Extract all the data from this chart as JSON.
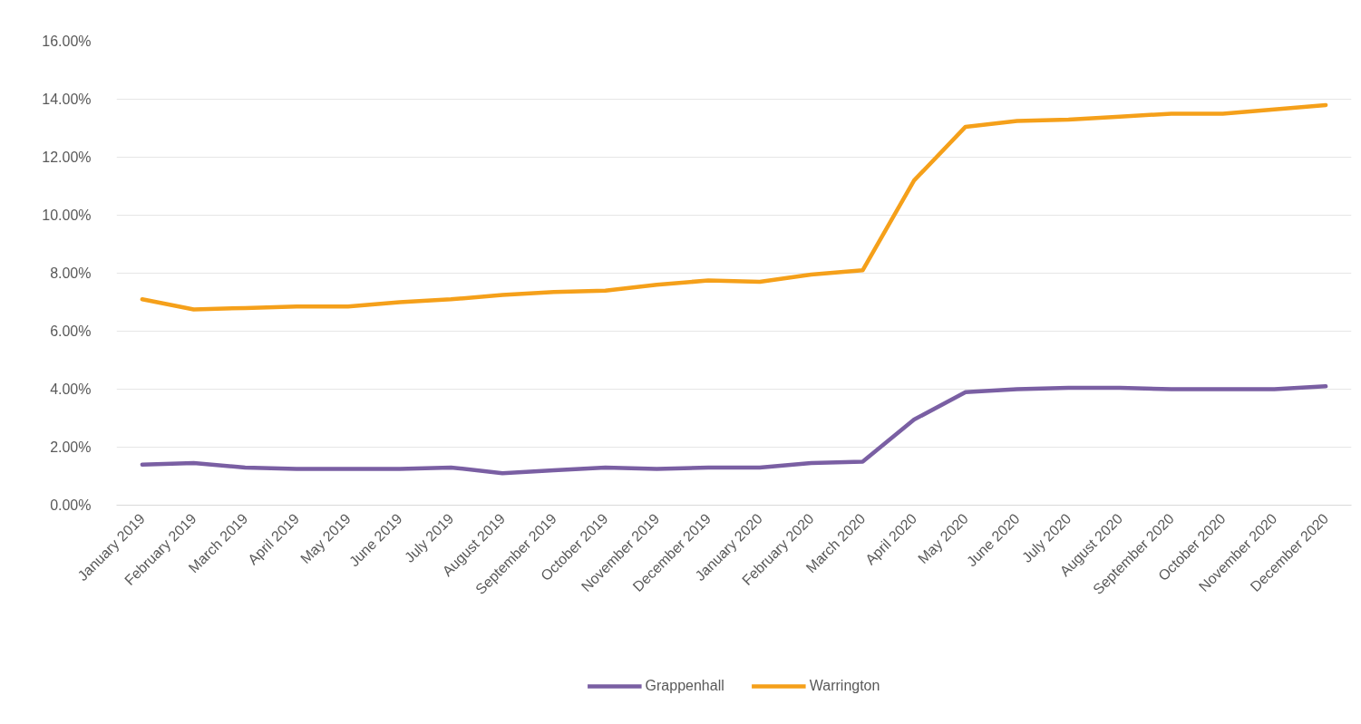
{
  "chart_data": {
    "type": "line",
    "categories": [
      "January 2019",
      "February 2019",
      "March 2019",
      "April 2019",
      "May 2019",
      "June 2019",
      "July 2019",
      "August 2019",
      "September 2019",
      "October 2019",
      "November 2019",
      "December 2019",
      "January 2020",
      "February 2020",
      "March 2020",
      "April 2020",
      "May 2020",
      "June 2020",
      "July 2020",
      "August 2020",
      "September 2020",
      "October 2020",
      "November 2020",
      "December 2020"
    ],
    "series": [
      {
        "name": "Grappenhall",
        "color": "#7a5fa3",
        "values": [
          1.4,
          1.45,
          1.3,
          1.25,
          1.25,
          1.25,
          1.3,
          1.1,
          1.2,
          1.3,
          1.25,
          1.3,
          1.3,
          1.45,
          1.5,
          2.95,
          3.9,
          4.0,
          4.05,
          4.05,
          4.0,
          4.0,
          4.0,
          4.1
        ]
      },
      {
        "name": "Warrington",
        "color": "#f5a01a",
        "values": [
          7.1,
          6.75,
          6.8,
          6.85,
          6.85,
          7.0,
          7.1,
          7.25,
          7.35,
          7.4,
          7.6,
          7.75,
          7.7,
          7.95,
          8.1,
          11.2,
          13.05,
          13.25,
          13.3,
          13.4,
          13.5,
          13.5,
          13.65,
          13.8
        ]
      }
    ],
    "ylim": [
      0,
      16
    ],
    "yticks": [
      {
        "value": 0,
        "label": "0.00%"
      },
      {
        "value": 2,
        "label": "2.00%"
      },
      {
        "value": 4,
        "label": "4.00%"
      },
      {
        "value": 6,
        "label": "6.00%"
      },
      {
        "value": 8,
        "label": "8.00%"
      },
      {
        "value": 10,
        "label": "10.00%"
      },
      {
        "value": 12,
        "label": "12.00%"
      },
      {
        "value": 14,
        "label": "14.00%"
      },
      {
        "value": 16,
        "label": "16.00%"
      }
    ],
    "grid": "y",
    "legend": "bottom",
    "marker": "none",
    "line_style": "solid"
  }
}
